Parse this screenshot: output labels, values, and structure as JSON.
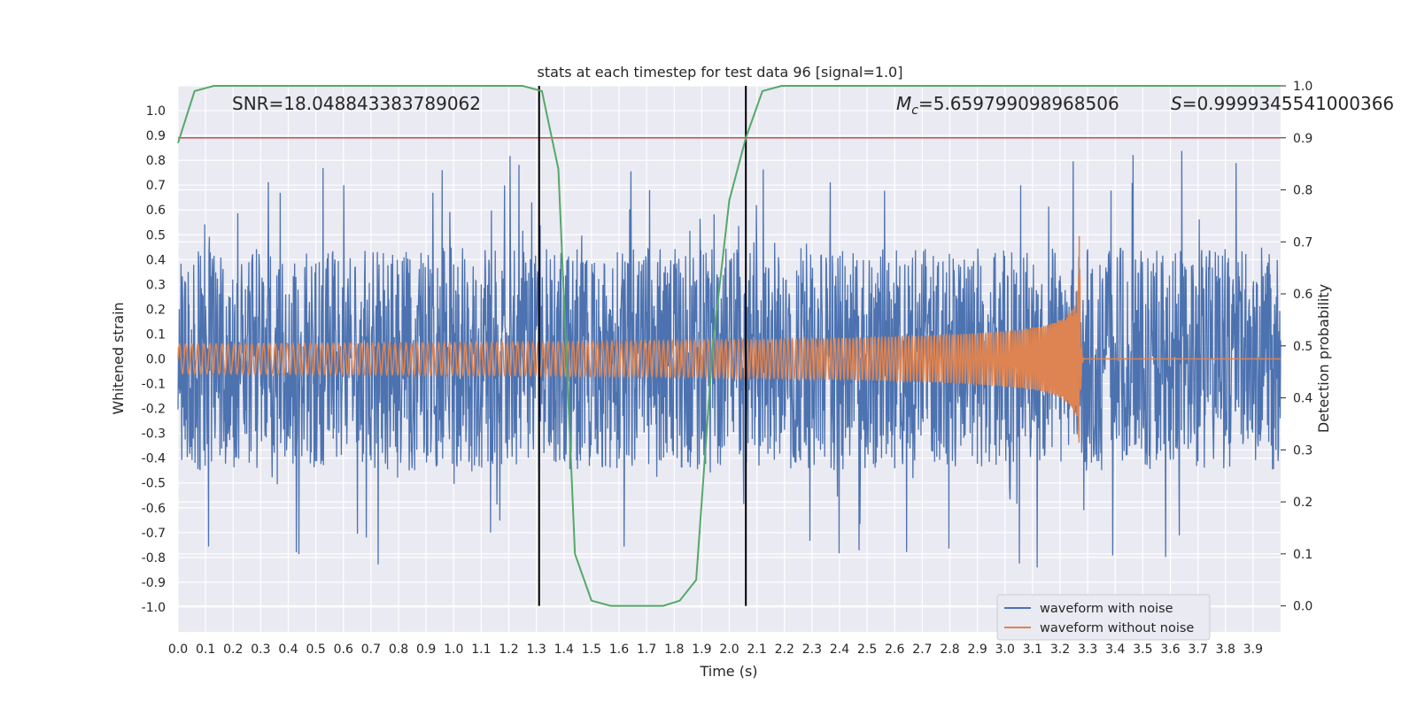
{
  "chart_data": {
    "type": "line",
    "title": "stats at each timestep for test data 96 [signal=1.0]",
    "xlabel": "Time (s)",
    "ylabel": "Whitened strain",
    "y2label": "Detection probability",
    "xlim": [
      0.0,
      4.0
    ],
    "ylim": [
      -1.1,
      1.1
    ],
    "y2lim": [
      -0.05,
      1.0
    ],
    "xticks": [
      "0.0",
      "0.1",
      "0.2",
      "0.3",
      "0.4",
      "0.5",
      "0.6",
      "0.7",
      "0.8",
      "0.9",
      "1.0",
      "1.1",
      "1.2",
      "1.3",
      "1.4",
      "1.5",
      "1.6",
      "1.7",
      "1.8",
      "1.9",
      "2.0",
      "2.1",
      "2.2",
      "2.3",
      "2.4",
      "2.5",
      "2.6",
      "2.7",
      "2.8",
      "2.9",
      "3.0",
      "3.1",
      "3.2",
      "3.3",
      "3.4",
      "3.5",
      "3.6",
      "3.7",
      "3.8",
      "3.9"
    ],
    "yticks": [
      "1.0",
      "0.9",
      "0.8",
      "0.7",
      "0.6",
      "0.5",
      "0.4",
      "0.3",
      "0.2",
      "0.1",
      "0.0",
      "-0.1",
      "-0.2",
      "-0.3",
      "-0.4",
      "-0.5",
      "-0.6",
      "-0.7",
      "-0.8",
      "-0.9",
      "-1.0"
    ],
    "y2ticks": [
      "1.0",
      "0.9",
      "0.8",
      "0.7",
      "0.6",
      "0.5",
      "0.4",
      "0.3",
      "0.2",
      "0.1",
      "0.0"
    ],
    "annotations": {
      "snr": "SNR=18.048843383789062",
      "mc_symbol": "M",
      "mc_sub": "c",
      "mc_value": "=5.659799098968506",
      "s_symbol": "S",
      "s_value": "=0.9999345541000366"
    },
    "threshold": {
      "axis": "y2",
      "value": 0.9,
      "color": "#c44e52"
    },
    "vlines": [
      1.31,
      2.06
    ],
    "series": [
      {
        "name": "waveform with noise",
        "color": "#4c72b0",
        "axis": "y",
        "noise_amplitude": 0.45,
        "peak_range": [
          -1.0,
          1.0
        ]
      },
      {
        "name": "waveform without noise",
        "color": "#dd8452",
        "axis": "y",
        "start_amplitude": 0.06,
        "peak_time": 3.27,
        "peak_amplitude": 0.58
      },
      {
        "name": "detection probability",
        "color": "#55a868",
        "axis": "y2",
        "x": [
          0.0,
          0.06,
          0.13,
          0.2,
          0.3,
          1.25,
          1.32,
          1.38,
          1.44,
          1.5,
          1.57,
          1.64,
          1.7,
          1.76,
          1.82,
          1.88,
          1.94,
          2.0,
          2.06,
          2.12,
          2.19,
          2.25,
          4.0
        ],
        "y": [
          0.89,
          0.99,
          1.0,
          1.0,
          1.0,
          1.0,
          0.99,
          0.84,
          0.1,
          0.01,
          0.0,
          0.0,
          0.0,
          0.0,
          0.01,
          0.05,
          0.5,
          0.78,
          0.9,
          0.99,
          1.0,
          1.0,
          1.0
        ]
      }
    ],
    "legend": {
      "placement": "lower-right",
      "entries": [
        "waveform with noise",
        "waveform without noise"
      ]
    }
  }
}
